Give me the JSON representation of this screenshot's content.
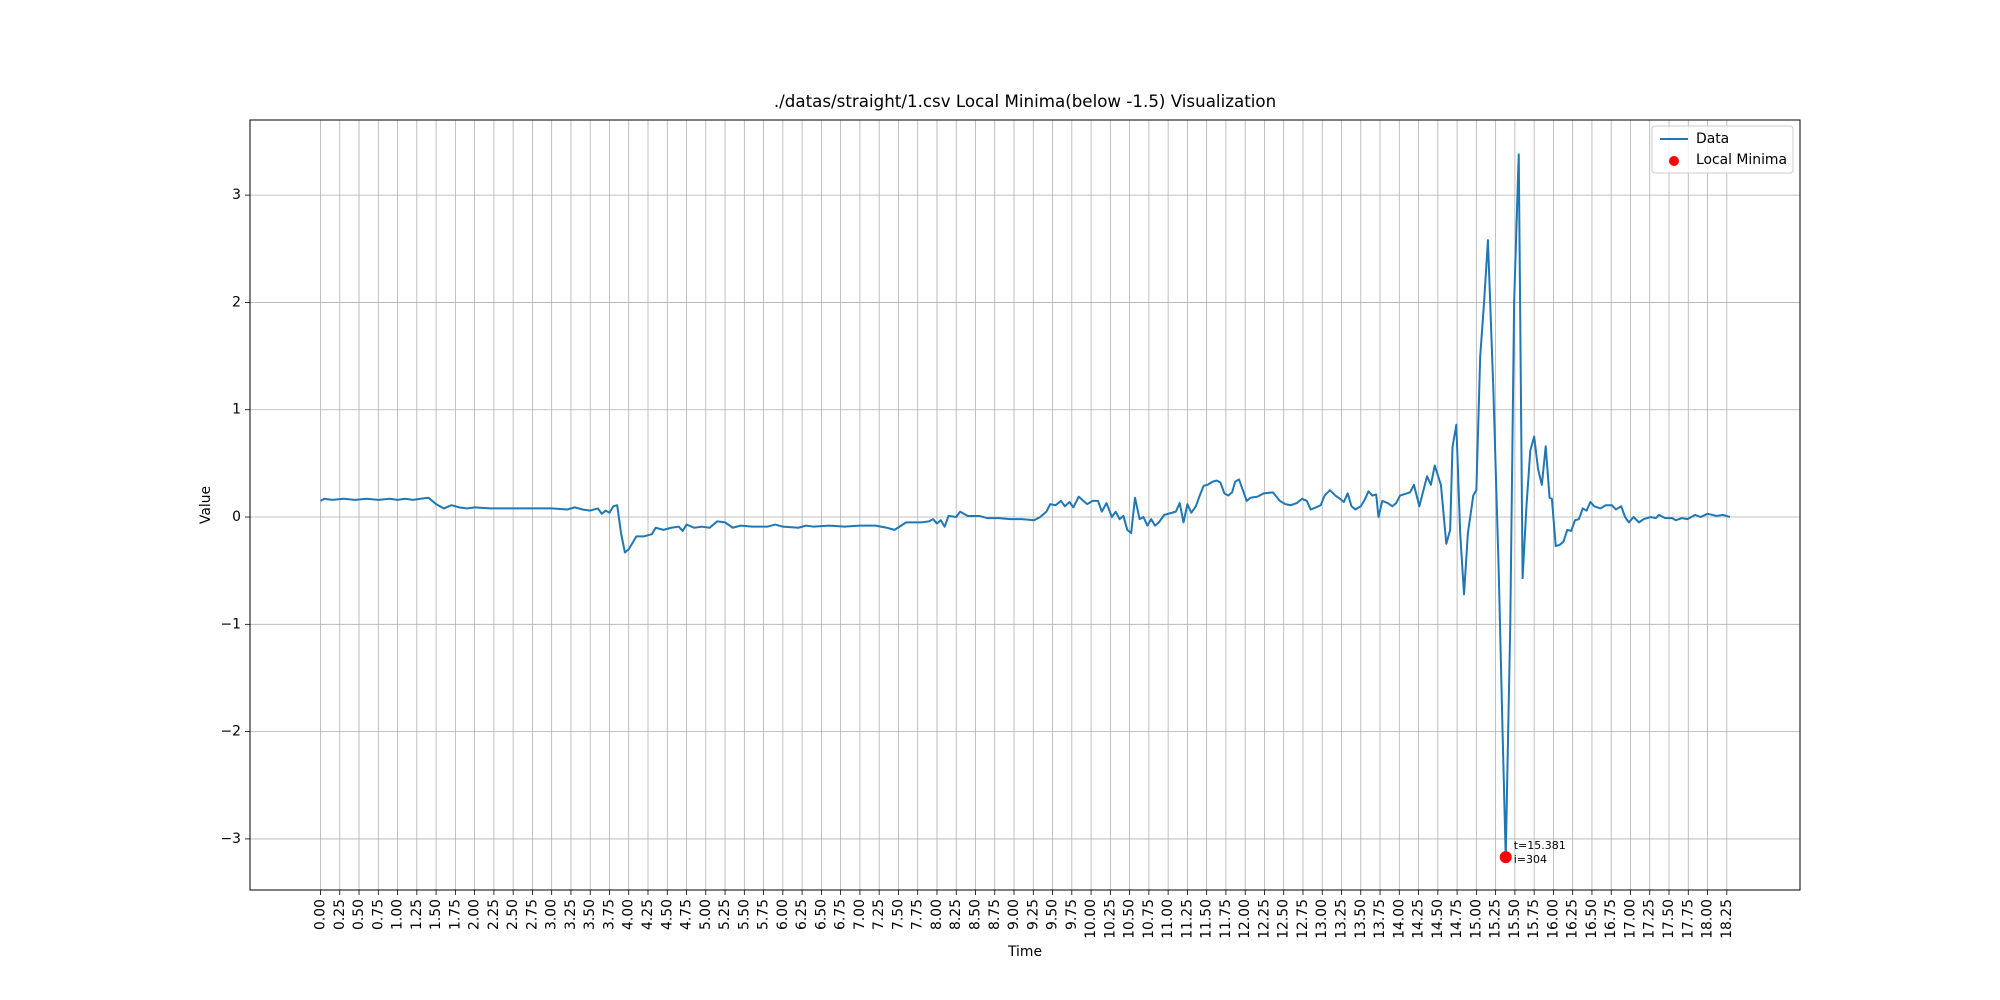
{
  "chart_data": {
    "type": "line",
    "title": "./datas/straight/1.csv Local Minima(below -1.5) Visualization",
    "xlabel": "Time",
    "ylabel": "Value",
    "xlim": [
      -0.915,
      19.2
    ],
    "ylim": [
      -3.476,
      3.7
    ],
    "xticks": [
      {
        "value": 0,
        "label": "0.00"
      },
      {
        "value": 0.25,
        "label": "0.25"
      },
      {
        "value": 0.5,
        "label": "0.50"
      },
      {
        "value": 0.75,
        "label": "0.75"
      },
      {
        "value": 1,
        "label": "1.00"
      },
      {
        "value": 1.25,
        "label": "1.25"
      },
      {
        "value": 1.5,
        "label": "1.50"
      },
      {
        "value": 1.75,
        "label": "1.75"
      },
      {
        "value": 2,
        "label": "2.00"
      },
      {
        "value": 2.25,
        "label": "2.25"
      },
      {
        "value": 2.5,
        "label": "2.50"
      },
      {
        "value": 2.75,
        "label": "2.75"
      },
      {
        "value": 3,
        "label": "3.00"
      },
      {
        "value": 3.25,
        "label": "3.25"
      },
      {
        "value": 3.5,
        "label": "3.50"
      },
      {
        "value": 3.75,
        "label": "3.75"
      },
      {
        "value": 4,
        "label": "4.00"
      },
      {
        "value": 4.25,
        "label": "4.25"
      },
      {
        "value": 4.5,
        "label": "4.50"
      },
      {
        "value": 4.75,
        "label": "4.75"
      },
      {
        "value": 5,
        "label": "5.00"
      },
      {
        "value": 5.25,
        "label": "5.25"
      },
      {
        "value": 5.5,
        "label": "5.50"
      },
      {
        "value": 5.75,
        "label": "5.75"
      },
      {
        "value": 6,
        "label": "6.00"
      },
      {
        "value": 6.25,
        "label": "6.25"
      },
      {
        "value": 6.5,
        "label": "6.50"
      },
      {
        "value": 6.75,
        "label": "6.75"
      },
      {
        "value": 7,
        "label": "7.00"
      },
      {
        "value": 7.25,
        "label": "7.25"
      },
      {
        "value": 7.5,
        "label": "7.50"
      },
      {
        "value": 7.75,
        "label": "7.75"
      },
      {
        "value": 8,
        "label": "8.00"
      },
      {
        "value": 8.25,
        "label": "8.25"
      },
      {
        "value": 8.5,
        "label": "8.50"
      },
      {
        "value": 8.75,
        "label": "8.75"
      },
      {
        "value": 9,
        "label": "9.00"
      },
      {
        "value": 9.25,
        "label": "9.25"
      },
      {
        "value": 9.5,
        "label": "9.50"
      },
      {
        "value": 9.75,
        "label": "9.75"
      },
      {
        "value": 10,
        "label": "10.00"
      },
      {
        "value": 10.25,
        "label": "10.25"
      },
      {
        "value": 10.5,
        "label": "10.50"
      },
      {
        "value": 10.75,
        "label": "10.75"
      },
      {
        "value": 11,
        "label": "11.00"
      },
      {
        "value": 11.25,
        "label": "11.25"
      },
      {
        "value": 11.5,
        "label": "11.50"
      },
      {
        "value": 11.75,
        "label": "11.75"
      },
      {
        "value": 12,
        "label": "12.00"
      },
      {
        "value": 12.25,
        "label": "12.25"
      },
      {
        "value": 12.5,
        "label": "12.50"
      },
      {
        "value": 12.75,
        "label": "12.75"
      },
      {
        "value": 13,
        "label": "13.00"
      },
      {
        "value": 13.25,
        "label": "13.25"
      },
      {
        "value": 13.5,
        "label": "13.50"
      },
      {
        "value": 13.75,
        "label": "13.75"
      },
      {
        "value": 14,
        "label": "14.00"
      },
      {
        "value": 14.25,
        "label": "14.25"
      },
      {
        "value": 14.5,
        "label": "14.50"
      },
      {
        "value": 14.75,
        "label": "14.75"
      },
      {
        "value": 15,
        "label": "15.00"
      },
      {
        "value": 15.25,
        "label": "15.25"
      },
      {
        "value": 15.5,
        "label": "15.50"
      },
      {
        "value": 15.75,
        "label": "15.75"
      },
      {
        "value": 16,
        "label": "16.00"
      },
      {
        "value": 16.25,
        "label": "16.25"
      },
      {
        "value": 16.5,
        "label": "16.50"
      },
      {
        "value": 16.75,
        "label": "16.75"
      },
      {
        "value": 17,
        "label": "17.00"
      },
      {
        "value": 17.25,
        "label": "17.25"
      },
      {
        "value": 17.5,
        "label": "17.50"
      },
      {
        "value": 17.75,
        "label": "17.75"
      },
      {
        "value": 18,
        "label": "18.00"
      },
      {
        "value": 18.25,
        "label": "18.25"
      }
    ],
    "yticks": [
      {
        "value": -3,
        "label": "−3"
      },
      {
        "value": -2,
        "label": "−2"
      },
      {
        "value": -1,
        "label": "−1"
      },
      0,
      1,
      2,
      3
    ],
    "grid": true,
    "legend": "upper right",
    "series": [
      {
        "name": "Data",
        "color": "#1f77b4",
        "kind": "line",
        "x": [
          0,
          0.05,
          0.15,
          0.3,
          0.45,
          0.6,
          0.75,
          0.9,
          1.0,
          1.1,
          1.2,
          1.3,
          1.4,
          1.5,
          1.6,
          1.7,
          1.8,
          1.9,
          2.0,
          2.2,
          2.5,
          2.8,
          3.0,
          3.2,
          3.3,
          3.4,
          3.5,
          3.6,
          3.65,
          3.7,
          3.75,
          3.8,
          3.85,
          3.9,
          3.95,
          4.0,
          4.1,
          4.2,
          4.3,
          4.35,
          4.45,
          4.55,
          4.65,
          4.7,
          4.75,
          4.85,
          4.95,
          5.05,
          5.15,
          5.25,
          5.35,
          5.45,
          5.6,
          5.8,
          5.9,
          6.0,
          6.2,
          6.3,
          6.4,
          6.6,
          6.8,
          7.0,
          7.2,
          7.35,
          7.45,
          7.6,
          7.8,
          7.9,
          7.95,
          8.0,
          8.05,
          8.1,
          8.15,
          8.25,
          8.3,
          8.4,
          8.55,
          8.65,
          8.8,
          8.95,
          9.1,
          9.26,
          9.34,
          9.42,
          9.47,
          9.54,
          9.61,
          9.66,
          9.72,
          9.77,
          9.84,
          9.9,
          9.95,
          10.02,
          10.09,
          10.14,
          10.2,
          10.27,
          10.32,
          10.37,
          10.42,
          10.47,
          10.52,
          10.57,
          10.63,
          10.68,
          10.73,
          10.78,
          10.83,
          10.88,
          10.95,
          11.05,
          11.1,
          11.15,
          11.2,
          11.25,
          11.3,
          11.36,
          11.41,
          11.46,
          11.51,
          11.58,
          11.63,
          11.68,
          11.73,
          11.78,
          11.83,
          11.87,
          11.92,
          11.97,
          12.02,
          12.07,
          12.16,
          12.24,
          12.36,
          12.45,
          12.52,
          12.59,
          12.67,
          12.74,
          12.8,
          12.85,
          12.92,
          12.98,
          13.03,
          13.1,
          13.17,
          13.23,
          13.28,
          13.33,
          13.38,
          13.43,
          13.5,
          13.55,
          13.6,
          13.65,
          13.7,
          13.73,
          13.78,
          13.85,
          13.91,
          13.96,
          14.01,
          14.14,
          14.19,
          14.26,
          14.36,
          14.41,
          14.46,
          14.54,
          14.61,
          14.66,
          14.69,
          14.74,
          14.79,
          14.84,
          14.89,
          14.96,
          15.0,
          15.05,
          15.1,
          15.15,
          15.22,
          15.29,
          15.34,
          15.381,
          15.44,
          15.49,
          15.55,
          15.6,
          15.65,
          15.7,
          15.75,
          15.8,
          15.85,
          15.9,
          15.95,
          15.98,
          16.03,
          16.08,
          16.13,
          16.18,
          16.23,
          16.28,
          16.33,
          16.38,
          16.43,
          16.48,
          16.53,
          16.61,
          16.68,
          16.76,
          16.81,
          16.88,
          16.93,
          16.98,
          17.04,
          17.11,
          17.17,
          17.26,
          17.33,
          17.37,
          17.45,
          17.54,
          17.59,
          17.67,
          17.74,
          17.84,
          17.91,
          18.0,
          18.12,
          18.2,
          18.29
        ],
        "values": [
          0.15,
          0.17,
          0.16,
          0.17,
          0.16,
          0.17,
          0.16,
          0.17,
          0.16,
          0.17,
          0.16,
          0.17,
          0.18,
          0.12,
          0.08,
          0.11,
          0.09,
          0.08,
          0.09,
          0.08,
          0.08,
          0.08,
          0.08,
          0.07,
          0.09,
          0.07,
          0.06,
          0.08,
          0.03,
          0.06,
          0.04,
          0.1,
          0.11,
          -0.15,
          -0.33,
          -0.3,
          -0.18,
          -0.18,
          -0.16,
          -0.1,
          -0.12,
          -0.1,
          -0.09,
          -0.13,
          -0.07,
          -0.1,
          -0.09,
          -0.1,
          -0.04,
          -0.05,
          -0.1,
          -0.08,
          -0.09,
          -0.09,
          -0.07,
          -0.09,
          -0.1,
          -0.08,
          -0.09,
          -0.08,
          -0.09,
          -0.08,
          -0.08,
          -0.1,
          -0.12,
          -0.05,
          -0.05,
          -0.04,
          -0.02,
          -0.06,
          -0.03,
          -0.09,
          0.01,
          0.0,
          0.05,
          0.01,
          0.01,
          -0.01,
          -0.01,
          -0.02,
          -0.02,
          -0.03,
          0.0,
          0.05,
          0.12,
          0.11,
          0.15,
          0.1,
          0.14,
          0.09,
          0.19,
          0.15,
          0.12,
          0.15,
          0.15,
          0.05,
          0.13,
          0.0,
          0.05,
          -0.02,
          0.01,
          -0.12,
          -0.15,
          0.18,
          -0.02,
          0.0,
          -0.08,
          -0.02,
          -0.08,
          -0.05,
          0.02,
          0.04,
          0.05,
          0.13,
          -0.05,
          0.12,
          0.04,
          0.1,
          0.2,
          0.29,
          0.3,
          0.33,
          0.34,
          0.32,
          0.22,
          0.2,
          0.23,
          0.33,
          0.35,
          0.25,
          0.15,
          0.18,
          0.19,
          0.22,
          0.23,
          0.15,
          0.12,
          0.11,
          0.13,
          0.17,
          0.15,
          0.07,
          0.09,
          0.11,
          0.2,
          0.25,
          0.2,
          0.17,
          0.14,
          0.22,
          0.1,
          0.07,
          0.1,
          0.16,
          0.24,
          0.2,
          0.21,
          0.0,
          0.15,
          0.13,
          0.1,
          0.13,
          0.2,
          0.23,
          0.3,
          0.1,
          0.38,
          0.3,
          0.48,
          0.3,
          -0.25,
          -0.12,
          0.65,
          0.86,
          -0.15,
          -0.72,
          -0.15,
          0.2,
          0.25,
          1.5,
          2.0,
          2.58,
          1.2,
          -0.5,
          -2.0,
          -3.17,
          -1.0,
          2.0,
          3.38,
          -0.57,
          0.1,
          0.62,
          0.75,
          0.45,
          0.3,
          0.66,
          0.18,
          0.17,
          -0.27,
          -0.26,
          -0.23,
          -0.12,
          -0.13,
          -0.03,
          -0.02,
          0.08,
          0.06,
          0.14,
          0.1,
          0.08,
          0.11,
          0.11,
          0.07,
          0.1,
          0.0,
          -0.05,
          0.0,
          -0.05,
          -0.02,
          0.0,
          -0.01,
          0.02,
          -0.01,
          -0.01,
          -0.03,
          -0.01,
          -0.02,
          0.02,
          0.0,
          0.03,
          0.01,
          0.02,
          0.0
        ]
      },
      {
        "name": "Local Minima",
        "color": "#ff0000",
        "kind": "scatter",
        "x": [
          15.381
        ],
        "values": [
          -3.17
        ],
        "annotations": [
          [
            "t=15.381",
            "i=304"
          ]
        ]
      }
    ]
  }
}
